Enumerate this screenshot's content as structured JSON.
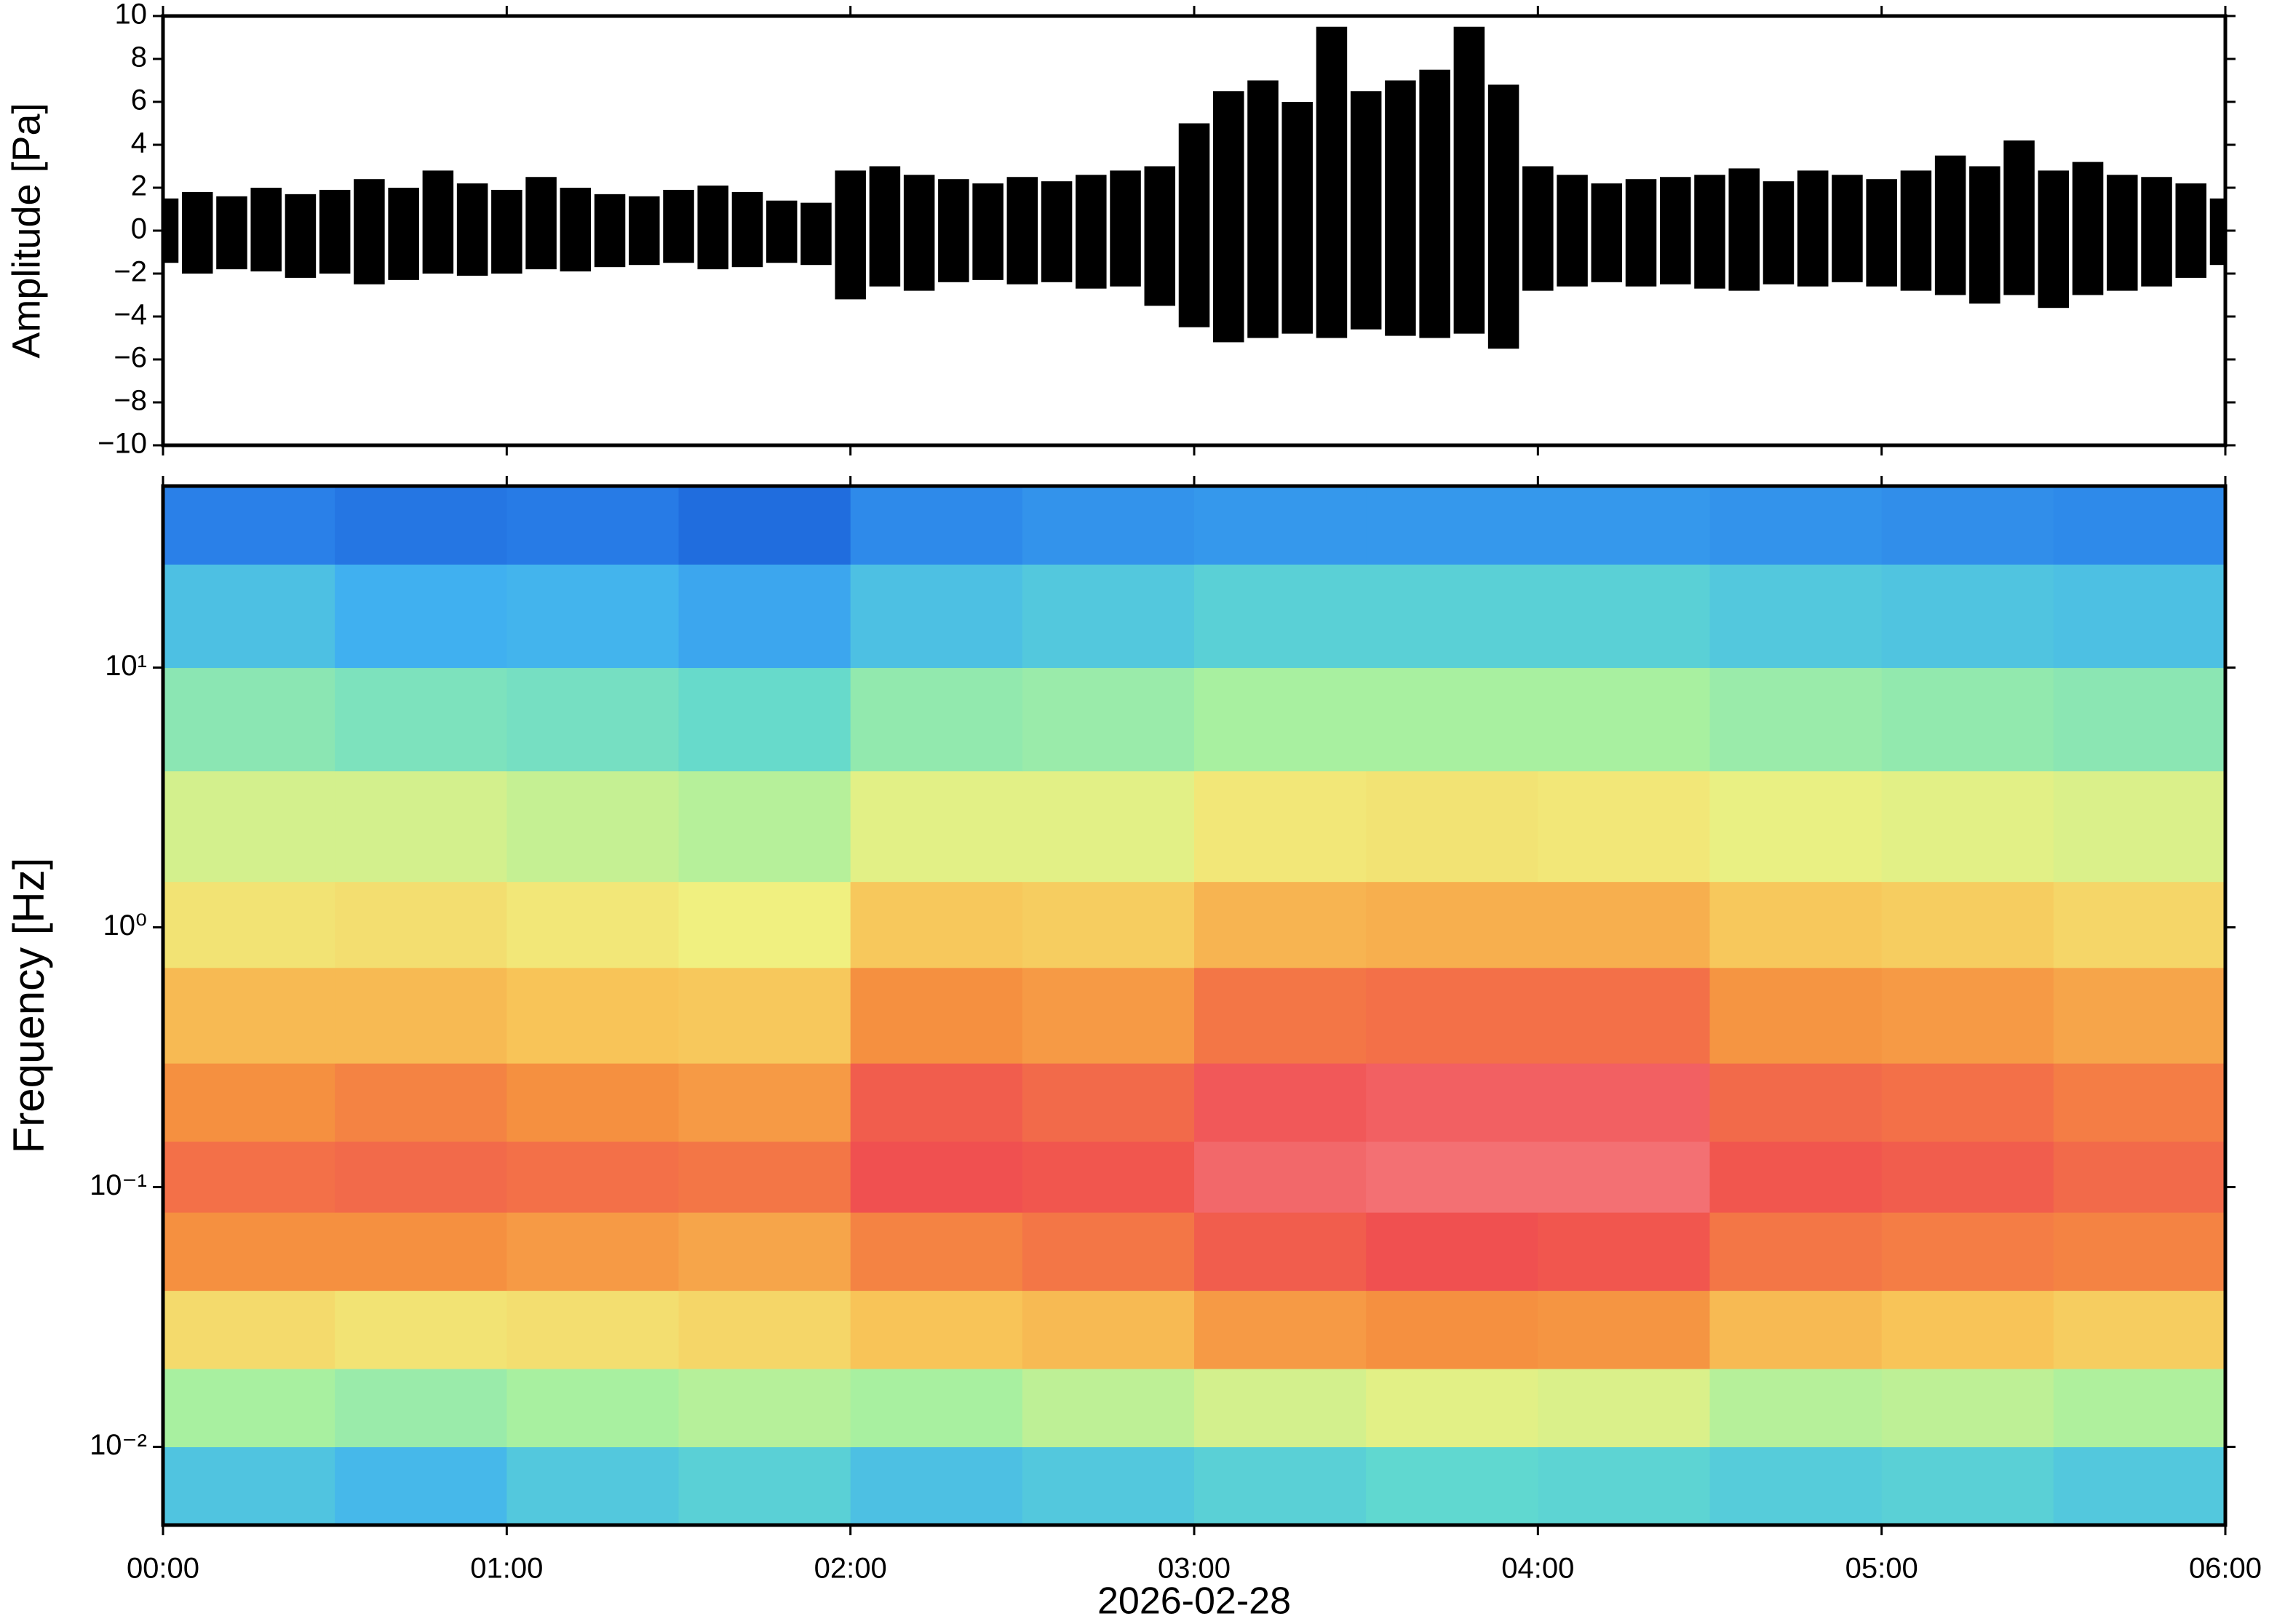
{
  "chart_data": [
    {
      "type": "envelope",
      "ylabel": "Amplitude [Pa]",
      "color": "#000000",
      "xlim": [
        0,
        6
      ],
      "ylim": [
        -10,
        10
      ],
      "xticks": [
        0,
        1,
        2,
        3,
        4,
        5,
        6
      ],
      "yticks": [
        {
          "value": -10,
          "label": "−10"
        },
        {
          "value": -8,
          "label": "−8"
        },
        {
          "value": -6,
          "label": "−6"
        },
        {
          "value": -4,
          "label": "−4"
        },
        {
          "value": -2,
          "label": "−2"
        },
        0,
        2,
        4,
        6,
        8,
        10
      ],
      "x": [
        0,
        0.1,
        0.2,
        0.3,
        0.4,
        0.5,
        0.6,
        0.7,
        0.8,
        0.9,
        1,
        1.1,
        1.2,
        1.3,
        1.4,
        1.5,
        1.6,
        1.7,
        1.8,
        1.9,
        2,
        2.1,
        2.2,
        2.3,
        2.4,
        2.5,
        2.6,
        2.7,
        2.8,
        2.9,
        3,
        3.1,
        3.2,
        3.3,
        3.4,
        3.5,
        3.6,
        3.7,
        3.8,
        3.9,
        4,
        4.1,
        4.2,
        4.3,
        4.4,
        4.5,
        4.6,
        4.7,
        4.8,
        4.9,
        5,
        5.1,
        5.2,
        5.3,
        5.4,
        5.5,
        5.6,
        5.7,
        5.8,
        5.9,
        6
      ],
      "upper": [
        1.5,
        1.8,
        1.6,
        2.0,
        1.7,
        1.9,
        2.4,
        2.0,
        2.8,
        2.2,
        1.9,
        2.5,
        2.0,
        1.7,
        1.6,
        1.9,
        2.1,
        1.8,
        1.4,
        1.3,
        2.8,
        3.0,
        2.6,
        2.4,
        2.2,
        2.5,
        2.3,
        2.6,
        2.8,
        3.0,
        5.0,
        6.5,
        7.0,
        6.0,
        9.5,
        6.5,
        7.0,
        7.5,
        9.5,
        6.8,
        3.0,
        2.6,
        2.2,
        2.4,
        2.5,
        2.6,
        2.9,
        2.3,
        2.8,
        2.6,
        2.4,
        2.8,
        3.5,
        3.0,
        4.2,
        2.8,
        3.2,
        2.6,
        2.5,
        2.2,
        1.5
      ],
      "lower": [
        -1.5,
        -2.0,
        -1.8,
        -1.9,
        -2.2,
        -2.0,
        -2.5,
        -2.3,
        -2.0,
        -2.1,
        -2.0,
        -1.8,
        -1.9,
        -1.7,
        -1.6,
        -1.5,
        -1.8,
        -1.7,
        -1.5,
        -1.6,
        -3.2,
        -2.6,
        -2.8,
        -2.4,
        -2.3,
        -2.5,
        -2.4,
        -2.7,
        -2.6,
        -3.5,
        -4.5,
        -5.2,
        -5.0,
        -4.8,
        -5.0,
        -4.6,
        -4.9,
        -5.0,
        -4.8,
        -5.5,
        -2.8,
        -2.6,
        -2.4,
        -2.6,
        -2.5,
        -2.7,
        -2.8,
        -2.5,
        -2.6,
        -2.4,
        -2.6,
        -2.8,
        -3.0,
        -3.4,
        -3.0,
        -3.6,
        -3.0,
        -2.8,
        -2.6,
        -2.2,
        -1.6
      ]
    },
    {
      "type": "heatmap",
      "ylabel": "Frequency [Hz]",
      "xlabel": "2026-02-28",
      "log_y": true,
      "xlim": [
        0,
        6
      ],
      "ylim": [
        0.005,
        50
      ],
      "xticks": [
        {
          "value": 0,
          "label": "00:00"
        },
        {
          "value": 1,
          "label": "01:00"
        },
        {
          "value": 2,
          "label": "02:00"
        },
        {
          "value": 3,
          "label": "03:00"
        },
        {
          "value": 4,
          "label": "04:00"
        },
        {
          "value": 5,
          "label": "05:00"
        },
        {
          "value": 6,
          "label": "06:00"
        }
      ],
      "yticks": [
        {
          "value": 0.01,
          "label": "10⁻²"
        },
        {
          "value": 0.1,
          "label": "10⁻¹"
        },
        {
          "value": 1,
          "label": "10⁰"
        },
        {
          "value": 10,
          "label": "10¹"
        }
      ],
      "xbins": [
        0,
        0.5,
        1,
        1.5,
        2,
        2.5,
        3,
        3.5,
        4,
        4.5,
        5,
        5.5,
        6
      ],
      "ybins": [
        0.005,
        0.01,
        0.02,
        0.04,
        0.08,
        0.15,
        0.3,
        0.7,
        1.5,
        4,
        10,
        25,
        50
      ],
      "zlim": [
        0,
        10
      ],
      "colorscale": [
        "#000080",
        "#1050d0",
        "#2a80e8",
        "#40b0f0",
        "#60d8d0",
        "#a8f0a0",
        "#f0f080",
        "#f8c458",
        "#f59040",
        "#f05050",
        "#f8a0a8"
      ],
      "z": [
        [
          3.5,
          3.2,
          3.6,
          3.8,
          3.4,
          3.6,
          3.8,
          4.0,
          3.9,
          3.7,
          3.8,
          3.6
        ],
        [
          5.0,
          4.8,
          5.0,
          5.2,
          5.0,
          5.3,
          5.6,
          5.8,
          5.7,
          5.2,
          5.3,
          5.1
        ],
        [
          6.5,
          6.3,
          6.4,
          6.6,
          7.0,
          7.2,
          7.8,
          8.0,
          7.9,
          7.2,
          7.0,
          6.8
        ],
        [
          8.0,
          8.0,
          7.8,
          7.6,
          8.2,
          8.4,
          8.8,
          9.0,
          8.9,
          8.4,
          8.3,
          8.2
        ],
        [
          8.5,
          8.6,
          8.5,
          8.4,
          9.0,
          8.9,
          9.3,
          9.4,
          9.4,
          8.9,
          8.8,
          8.6
        ],
        [
          8.0,
          8.2,
          8.0,
          7.8,
          8.8,
          8.6,
          9.1,
          9.2,
          9.2,
          8.6,
          8.5,
          8.3
        ],
        [
          7.2,
          7.2,
          7.0,
          6.9,
          8.0,
          7.8,
          8.4,
          8.5,
          8.5,
          7.9,
          7.8,
          7.6
        ],
        [
          6.3,
          6.4,
          6.2,
          6.0,
          6.9,
          6.8,
          7.3,
          7.4,
          7.4,
          6.9,
          6.8,
          6.6
        ],
        [
          5.6,
          5.6,
          5.4,
          5.2,
          5.8,
          5.8,
          6.2,
          6.3,
          6.2,
          5.9,
          5.8,
          5.7
        ],
        [
          4.6,
          4.4,
          4.3,
          4.1,
          4.7,
          4.8,
          5.0,
          5.0,
          5.0,
          4.8,
          4.7,
          4.6
        ],
        [
          3.4,
          3.0,
          3.1,
          2.8,
          3.4,
          3.6,
          3.8,
          3.8,
          3.8,
          3.6,
          3.5,
          3.4
        ],
        [
          2.0,
          1.8,
          1.9,
          1.6,
          2.2,
          2.4,
          2.5,
          2.5,
          2.5,
          2.4,
          2.3,
          2.2
        ]
      ]
    }
  ]
}
